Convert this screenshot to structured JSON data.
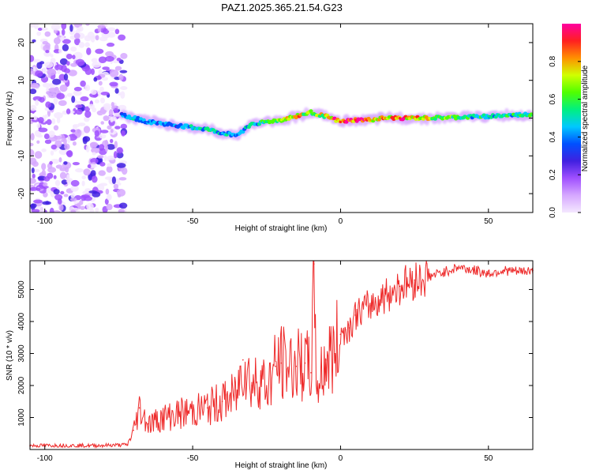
{
  "title": "PAZ1.2025.365.21.54.G23",
  "colors": {
    "snr_line": "#ee2a2a",
    "axis": "#000000",
    "cmap": [
      "#f4e8ff",
      "#d6a8ff",
      "#a050ff",
      "#4020e0",
      "#0050ff",
      "#00c8ff",
      "#00f080",
      "#50ff00",
      "#d0ff00",
      "#ff9000",
      "#ff2020",
      "#ff00a0"
    ]
  },
  "chart_data": [
    {
      "type": "heatmap",
      "xlabel": "Height of straight line (km)",
      "ylabel": "Frequency (Hz)",
      "xlim": [
        -105,
        65
      ],
      "ylim": [
        -25,
        25
      ],
      "xticks": [
        -100,
        -50,
        0,
        50
      ],
      "xtick_labels": [
        "-100",
        "-50",
        "0",
        "50"
      ],
      "yticks": [
        -20,
        -10,
        0,
        10,
        20
      ],
      "ytick_labels": [
        "-20",
        "-10",
        "0",
        "10",
        "20"
      ],
      "colorbar": {
        "label": "Normalized spectral amplitude",
        "range": [
          0,
          1
        ],
        "ticks": [
          0.0,
          0.2,
          0.4,
          0.6,
          0.8
        ],
        "tick_labels": [
          "0.0",
          "0.2",
          "0.4",
          "0.6",
          "0.8"
        ]
      },
      "noise_region_x": [
        -105,
        -73
      ],
      "signal_track": {
        "x": [
          -74,
          -70,
          -65,
          -60,
          -55,
          -50,
          -45,
          -40,
          -35,
          -30,
          -25,
          -20,
          -15,
          -10,
          -5,
          0,
          5,
          10,
          15,
          20,
          30,
          40,
          50,
          60,
          65
        ],
        "freq": [
          1.0,
          0.0,
          -1.0,
          -1.5,
          -2.0,
          -2.5,
          -3.0,
          -4.0,
          -4.5,
          -1.5,
          -1.0,
          -0.5,
          0.5,
          1.5,
          0.5,
          -1.0,
          -0.5,
          -0.5,
          0.0,
          0.0,
          0.0,
          0.2,
          0.5,
          0.8,
          1.0
        ],
        "amplitude": [
          0.35,
          0.45,
          0.4,
          0.4,
          0.4,
          0.45,
          0.5,
          0.45,
          0.4,
          0.5,
          0.55,
          0.75,
          0.85,
          0.6,
          0.75,
          0.9,
          0.9,
          0.85,
          0.8,
          0.9,
          0.7,
          0.55,
          0.5,
          0.5,
          0.6
        ]
      }
    },
    {
      "type": "line",
      "xlabel": "Height of straight line (km)",
      "ylabel": "SNR (10 * v/v)",
      "xlim": [
        -105,
        65
      ],
      "ylim": [
        0,
        5900
      ],
      "xticks": [
        -100,
        -50,
        0,
        50
      ],
      "xtick_labels": [
        "-100",
        "-50",
        "0",
        "50"
      ],
      "yticks": [
        1000,
        2000,
        3000,
        4000,
        5000
      ],
      "ytick_labels": [
        "1000",
        "2000",
        "3000",
        "4000",
        "5000"
      ],
      "series": [
        {
          "name": "SNR",
          "x": [
            -105,
            -95,
            -85,
            -75,
            -72,
            -70,
            -68,
            -65,
            -60,
            -55,
            -50,
            -45,
            -40,
            -35,
            -33,
            -30,
            -27,
            -25,
            -22,
            -20,
            -15,
            -12,
            -10,
            -9,
            -8,
            -5,
            -2,
            0,
            3,
            5,
            10,
            15,
            20,
            25,
            30,
            35,
            40,
            45,
            50,
            55,
            60,
            65
          ],
          "y": [
            120,
            130,
            120,
            140,
            150,
            600,
            1300,
            800,
            1000,
            1100,
            1200,
            1300,
            1500,
            1700,
            2800,
            2000,
            2300,
            1900,
            2600,
            2700,
            2600,
            2700,
            2400,
            5800,
            1900,
            2800,
            3000,
            3600,
            3800,
            4200,
            4500,
            4800,
            5100,
            5300,
            5400,
            5550,
            5700,
            5600,
            5500,
            5600,
            5550,
            5600
          ]
        }
      ]
    }
  ]
}
